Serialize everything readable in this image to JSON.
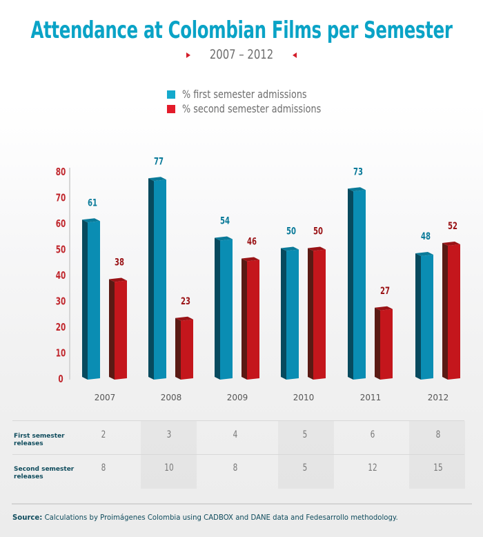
{
  "colors": {
    "first": "#0a8db3",
    "first_side": "#074a5e",
    "first_top": "#0a7a99",
    "second": "#c4161c",
    "second_side": "#5a1a14",
    "second_top": "#9a1316",
    "title": "#0aa3c6",
    "axis_labels": "#c0272d",
    "legend_first": "#14a9cc",
    "legend_second": "#e31b2a"
  },
  "chart_data": {
    "type": "bar",
    "title": "Attendance at Colombian Films per Semester",
    "subtitle": "2007 – 2012",
    "categories": [
      "2007",
      "2008",
      "2009",
      "2010",
      "2011",
      "2012"
    ],
    "series": [
      {
        "name": "% first semester admissions",
        "values": [
          61,
          77,
          54,
          50,
          73,
          48
        ]
      },
      {
        "name": "% second semester admissions",
        "values": [
          38,
          23,
          46,
          50,
          27,
          52
        ]
      }
    ],
    "yticks": [
      "0",
      "10",
      "20",
      "30",
      "40",
      "50",
      "60",
      "70",
      "80"
    ],
    "ylim": [
      0,
      80
    ],
    "grid": false,
    "legend": "top-center"
  },
  "table": {
    "rows": [
      {
        "label": "First semester releases",
        "values": [
          "2",
          "3",
          "4",
          "5",
          "6",
          "8"
        ]
      },
      {
        "label": "Second semester releases",
        "values": [
          "8",
          "10",
          "8",
          "5",
          "12",
          "15"
        ]
      }
    ]
  },
  "source": {
    "label": "Source:",
    "text": " Calculations by Proimágenes Colombia using CADBOX and DANE data and Fedesarrollo methodology."
  }
}
